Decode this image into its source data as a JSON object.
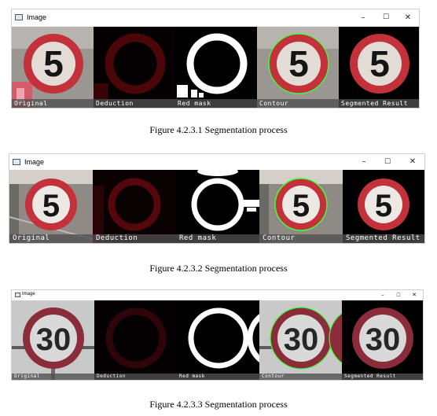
{
  "figures": [
    {
      "window_title": "Image",
      "controls": [
        "–",
        "☐",
        "✕"
      ],
      "panels": [
        "Original",
        "Deduction",
        "Red mask",
        "Contour",
        "Segmented Result"
      ],
      "sign_text": "5",
      "caption": "Figure 4.2.3.1 Segmentation process"
    },
    {
      "window_title": "Image",
      "controls": [
        "–",
        "☐",
        "✕"
      ],
      "panels": [
        "Original",
        "Deduction",
        "Red mask",
        "Contour",
        "Segmented Result"
      ],
      "sign_text": "5",
      "caption": "Figure 4.2.3.2 Segmentation process"
    },
    {
      "window_title": "Image",
      "controls": [
        "–",
        "☐",
        "✕"
      ],
      "panels": [
        "Original",
        "Deduction",
        "Red mask",
        "Contour",
        "Segmented Result"
      ],
      "sign_text": "30",
      "caption": "Figure 4.2.3.3 Segmentation process"
    }
  ],
  "colors": {
    "sign_red": "#c8202a",
    "sign_white": "#f2f2f2",
    "dark_red": "#3a0508",
    "contour_green": "#3cff3c"
  }
}
